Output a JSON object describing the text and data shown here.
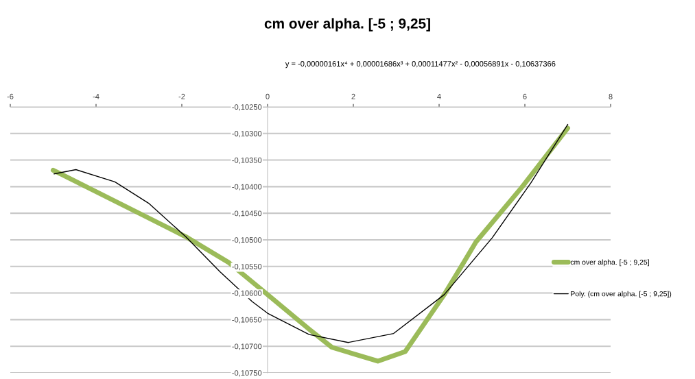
{
  "chart_data": {
    "type": "line",
    "title": "cm over alpha. [-5 ; 9,25]",
    "annotations": [
      "y = -0,00000161x⁴ + 0,00001686x³ + 0,00011477x² - 0,00056891x - 0,10637366"
    ],
    "series": [
      {
        "name": "cm over alpha. [-5 ; 9,25]",
        "color": "#9bbb59",
        "x": [
          -5.0,
          -2.92,
          -1.91,
          -0.9,
          0,
          0.97,
          1.5,
          2.57,
          3.21,
          4.12,
          4.54,
          4.86,
          5.93,
          7.0
        ],
        "values": [
          -0.10369,
          -0.10453,
          -0.10494,
          -0.10543,
          -0.10603,
          -0.10668,
          -0.10702,
          -0.10728,
          -0.1071,
          -0.10603,
          -0.10547,
          -0.10504,
          -0.10401,
          -0.1029
        ]
      },
      {
        "name": "Poly. (cm over alpha. [-5 ; 9,25])",
        "color": "#000000",
        "x": [
          -4.98,
          -4.47,
          -3.56,
          -2.76,
          -1.91,
          -1.11,
          -0.36,
          0,
          0.97,
          1.88,
          2.94,
          4.12,
          5.24,
          6.14,
          7.0
        ],
        "values": [
          -0.10376,
          -0.10368,
          -0.10391,
          -0.10432,
          -0.10494,
          -0.1056,
          -0.10616,
          -0.10638,
          -0.10678,
          -0.10693,
          -0.10676,
          -0.10603,
          -0.10496,
          -0.10393,
          -0.10283
        ]
      }
    ],
    "xlim": [
      -6,
      8
    ],
    "xticks": [
      -6,
      -4,
      -2,
      0,
      2,
      4,
      6,
      8
    ],
    "ylim": [
      -0.1075,
      -0.1025
    ],
    "yticks": [
      {
        "value": -0.1075,
        "label": "-0,10750"
      },
      {
        "value": -0.107,
        "label": "-0,10700"
      },
      {
        "value": -0.1065,
        "label": "-0,10650"
      },
      {
        "value": -0.106,
        "label": "-0,10600"
      },
      {
        "value": -0.1055,
        "label": "-0,10550"
      },
      {
        "value": -0.105,
        "label": "-0,10500"
      },
      {
        "value": -0.1045,
        "label": "-0,10450"
      },
      {
        "value": -0.104,
        "label": "-0,10400"
      },
      {
        "value": -0.1035,
        "label": "-0,10350"
      },
      {
        "value": -0.103,
        "label": "-0,10300"
      },
      {
        "value": -0.1025,
        "label": "-0,10250"
      }
    ],
    "grid": "y",
    "legend": "right",
    "marker": "none",
    "line_style": "solid"
  }
}
